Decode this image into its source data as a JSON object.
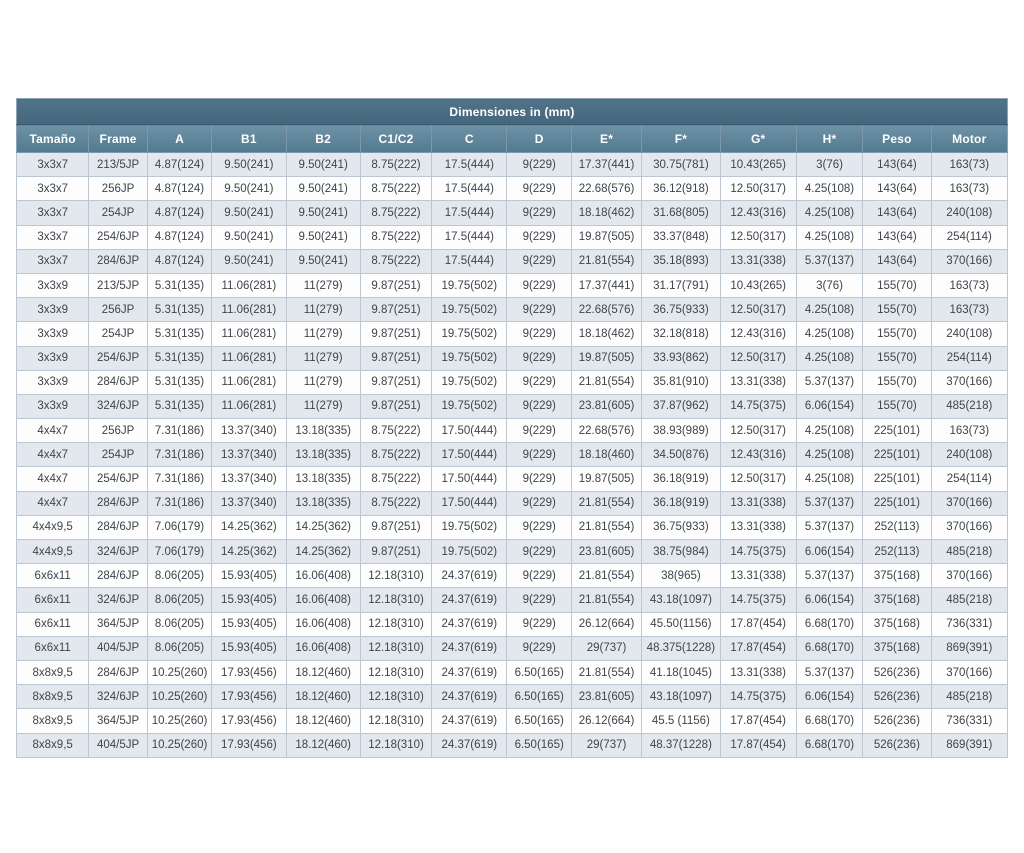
{
  "chart_data": {
    "type": "table",
    "title": "Dimensiones in (mm)",
    "columns": [
      "Tamaño",
      "Frame",
      "A",
      "B1",
      "B2",
      "C1/C2",
      "C",
      "D",
      "E*",
      "F*",
      "G*",
      "H*",
      "Peso",
      "Motor"
    ],
    "rows": [
      [
        "3x3x7",
        "213/5JP",
        "4.87(124)",
        "9.50(241)",
        "9.50(241)",
        "8.75(222)",
        "17.5(444)",
        "9(229)",
        "17.37(441)",
        "30.75(781)",
        "10.43(265)",
        "3(76)",
        "143(64)",
        "163(73)"
      ],
      [
        "3x3x7",
        "256JP",
        "4.87(124)",
        "9.50(241)",
        "9.50(241)",
        "8.75(222)",
        "17.5(444)",
        "9(229)",
        "22.68(576)",
        "36.12(918)",
        "12.50(317)",
        "4.25(108)",
        "143(64)",
        "163(73)"
      ],
      [
        "3x3x7",
        "254JP",
        "4.87(124)",
        "9.50(241)",
        "9.50(241)",
        "8.75(222)",
        "17.5(444)",
        "9(229)",
        "18.18(462)",
        "31.68(805)",
        "12.43(316)",
        "4.25(108)",
        "143(64)",
        "240(108)"
      ],
      [
        "3x3x7",
        "254/6JP",
        "4.87(124)",
        "9.50(241)",
        "9.50(241)",
        "8.75(222)",
        "17.5(444)",
        "9(229)",
        "19.87(505)",
        "33.37(848)",
        "12.50(317)",
        "4.25(108)",
        "143(64)",
        "254(114)"
      ],
      [
        "3x3x7",
        "284/6JP",
        "4.87(124)",
        "9.50(241)",
        "9.50(241)",
        "8.75(222)",
        "17.5(444)",
        "9(229)",
        "21.81(554)",
        "35.18(893)",
        "13.31(338)",
        "5.37(137)",
        "143(64)",
        "370(166)"
      ],
      [
        "3x3x9",
        "213/5JP",
        "5.31(135)",
        "11.06(281)",
        "11(279)",
        "9.87(251)",
        "19.75(502)",
        "9(229)",
        "17.37(441)",
        "31.17(791)",
        "10.43(265)",
        "3(76)",
        "155(70)",
        "163(73)"
      ],
      [
        "3x3x9",
        "256JP",
        "5.31(135)",
        "11.06(281)",
        "11(279)",
        "9.87(251)",
        "19.75(502)",
        "9(229)",
        "22.68(576)",
        "36.75(933)",
        "12.50(317)",
        "4.25(108)",
        "155(70)",
        "163(73)"
      ],
      [
        "3x3x9",
        "254JP",
        "5.31(135)",
        "11.06(281)",
        "11(279)",
        "9.87(251)",
        "19.75(502)",
        "9(229)",
        "18.18(462)",
        "32.18(818)",
        "12.43(316)",
        "4.25(108)",
        "155(70)",
        "240(108)"
      ],
      [
        "3x3x9",
        "254/6JP",
        "5.31(135)",
        "11.06(281)",
        "11(279)",
        "9.87(251)",
        "19.75(502)",
        "9(229)",
        "19.87(505)",
        "33.93(862)",
        "12.50(317)",
        "4.25(108)",
        "155(70)",
        "254(114)"
      ],
      [
        "3x3x9",
        "284/6JP",
        "5.31(135)",
        "11.06(281)",
        "11(279)",
        "9.87(251)",
        "19.75(502)",
        "9(229)",
        "21.81(554)",
        "35.81(910)",
        "13.31(338)",
        "5.37(137)",
        "155(70)",
        "370(166)"
      ],
      [
        "3x3x9",
        "324/6JP",
        "5.31(135)",
        "11.06(281)",
        "11(279)",
        "9.87(251)",
        "19.75(502)",
        "9(229)",
        "23.81(605)",
        "37.87(962)",
        "14.75(375)",
        "6.06(154)",
        "155(70)",
        "485(218)"
      ],
      [
        "4x4x7",
        "256JP",
        "7.31(186)",
        "13.37(340)",
        "13.18(335)",
        "8.75(222)",
        "17.50(444)",
        "9(229)",
        "22.68(576)",
        "38.93(989)",
        "12.50(317)",
        "4.25(108)",
        "225(101)",
        "163(73)"
      ],
      [
        "4x4x7",
        "254JP",
        "7.31(186)",
        "13.37(340)",
        "13.18(335)",
        "8.75(222)",
        "17.50(444)",
        "9(229)",
        "18.18(460)",
        "34.50(876)",
        "12.43(316)",
        "4.25(108)",
        "225(101)",
        "240(108)"
      ],
      [
        "4x4x7",
        "254/6JP",
        "7.31(186)",
        "13.37(340)",
        "13.18(335)",
        "8.75(222)",
        "17.50(444)",
        "9(229)",
        "19.87(505)",
        "36.18(919)",
        "12.50(317)",
        "4.25(108)",
        "225(101)",
        "254(114)"
      ],
      [
        "4x4x7",
        "284/6JP",
        "7.31(186)",
        "13.37(340)",
        "13.18(335)",
        "8.75(222)",
        "17.50(444)",
        "9(229)",
        "21.81(554)",
        "36.18(919)",
        "13.31(338)",
        "5.37(137)",
        "225(101)",
        "370(166)"
      ],
      [
        "4x4x9,5",
        "284/6JP",
        "7.06(179)",
        "14.25(362)",
        "14.25(362)",
        "9.87(251)",
        "19.75(502)",
        "9(229)",
        "21.81(554)",
        "36.75(933)",
        "13.31(338)",
        "5.37(137)",
        "252(113)",
        "370(166)"
      ],
      [
        "4x4x9,5",
        "324/6JP",
        "7.06(179)",
        "14.25(362)",
        "14.25(362)",
        "9.87(251)",
        "19.75(502)",
        "9(229)",
        "23.81(605)",
        "38.75(984)",
        "14.75(375)",
        "6.06(154)",
        "252(113)",
        "485(218)"
      ],
      [
        "6x6x11",
        "284/6JP",
        "8.06(205)",
        "15.93(405)",
        "16.06(408)",
        "12.18(310)",
        "24.37(619)",
        "9(229)",
        "21.81(554)",
        "38(965)",
        "13.31(338)",
        "5.37(137)",
        "375(168)",
        "370(166)"
      ],
      [
        "6x6x11",
        "324/6JP",
        "8.06(205)",
        "15.93(405)",
        "16.06(408)",
        "12.18(310)",
        "24.37(619)",
        "9(229)",
        "21.81(554)",
        "43.18(1097)",
        "14.75(375)",
        "6.06(154)",
        "375(168)",
        "485(218)"
      ],
      [
        "6x6x11",
        "364/5JP",
        "8.06(205)",
        "15.93(405)",
        "16.06(408)",
        "12.18(310)",
        "24.37(619)",
        "9(229)",
        "26.12(664)",
        "45.50(1156)",
        "17.87(454)",
        "6.68(170)",
        "375(168)",
        "736(331)"
      ],
      [
        "6x6x11",
        "404/5JP",
        "8.06(205)",
        "15.93(405)",
        "16.06(408)",
        "12.18(310)",
        "24.37(619)",
        "9(229)",
        "29(737)",
        "48.375(1228)",
        "17.87(454)",
        "6.68(170)",
        "375(168)",
        "869(391)"
      ],
      [
        "8x8x9,5",
        "284/6JP",
        "10.25(260)",
        "17.93(456)",
        "18.12(460)",
        "12.18(310)",
        "24.37(619)",
        "6.50(165)",
        "21.81(554)",
        "41.18(1045)",
        "13.31(338)",
        "5.37(137)",
        "526(236)",
        "370(166)"
      ],
      [
        "8x8x9,5",
        "324/6JP",
        "10.25(260)",
        "17.93(456)",
        "18.12(460)",
        "12.18(310)",
        "24.37(619)",
        "6.50(165)",
        "23.81(605)",
        "43.18(1097)",
        "14.75(375)",
        "6.06(154)",
        "526(236)",
        "485(218)"
      ],
      [
        "8x8x9,5",
        "364/5JP",
        "10.25(260)",
        "17.93(456)",
        "18.12(460)",
        "12.18(310)",
        "24.37(619)",
        "6.50(165)",
        "26.12(664)",
        "45.5 (1156)",
        "17.87(454)",
        "6.68(170)",
        "526(236)",
        "736(331)"
      ],
      [
        "8x8x9,5",
        "404/5JP",
        "10.25(260)",
        "17.93(456)",
        "18.12(460)",
        "12.18(310)",
        "24.37(619)",
        "6.50(165)",
        "29(737)",
        "48.37(1228)",
        "17.87(454)",
        "6.68(170)",
        "526(236)",
        "869(391)"
      ]
    ],
    "layout": {
      "grid": "on",
      "striped_rows": true
    }
  },
  "colors": {
    "title_band": "#4a6d83",
    "header_gradient_top": "#6e92a6",
    "header_gradient_bottom": "#527a90",
    "header_text": "#ffffff",
    "row_odd": "#e3e8ef",
    "row_even": "#fdfdfe",
    "cell_border": "#bdc7d1",
    "outer_border": "#8fa3b2",
    "body_text": "#3f4448",
    "page_background": "#ffffff"
  },
  "column_widths_pct": [
    7.3,
    5.9,
    6.5,
    7.5,
    7.5,
    7.2,
    7.6,
    6.5,
    7.1,
    7.9,
    7.7,
    6.7,
    6.9,
    7.7
  ]
}
